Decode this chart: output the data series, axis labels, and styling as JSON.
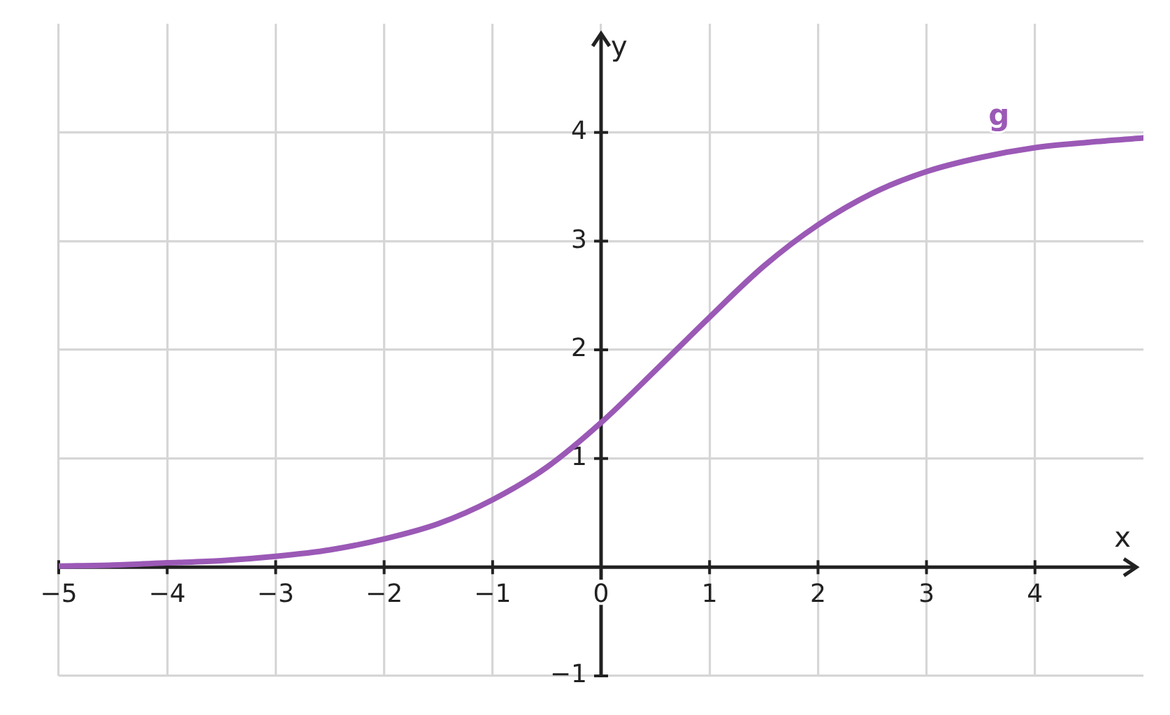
{
  "chart_data": {
    "type": "line",
    "xlabel": "x",
    "ylabel": "y",
    "x": [
      -5,
      -4.5,
      -4,
      -3.5,
      -3,
      -2.5,
      -2,
      -1.5,
      -1,
      -0.5,
      0,
      0.5,
      1,
      1.5,
      2,
      2.5,
      3,
      3.5,
      4,
      4.5,
      5
    ],
    "series": [
      {
        "name": "g",
        "color": "#9b59b6",
        "values": [
          0.01,
          0.02,
          0.04,
          0.06,
          0.1,
          0.16,
          0.26,
          0.4,
          0.62,
          0.92,
          1.33,
          1.81,
          2.3,
          2.77,
          3.15,
          3.44,
          3.64,
          3.77,
          3.86,
          3.91,
          3.95
        ]
      }
    ],
    "xlim": [
      -5,
      5
    ],
    "ylim": [
      -1,
      5
    ],
    "xticks": [
      {
        "value": -5,
        "label": "−5"
      },
      {
        "value": -4,
        "label": "−4"
      },
      {
        "value": -3,
        "label": "−3"
      },
      {
        "value": -2,
        "label": "−2"
      },
      {
        "value": -1,
        "label": "−1"
      },
      0,
      1,
      2,
      3,
      4
    ],
    "yticks": [
      {
        "value": -1,
        "label": "−1"
      },
      1,
      2,
      3,
      4
    ],
    "grid": true,
    "legend": false,
    "marker": "none",
    "line_style": "solid"
  }
}
